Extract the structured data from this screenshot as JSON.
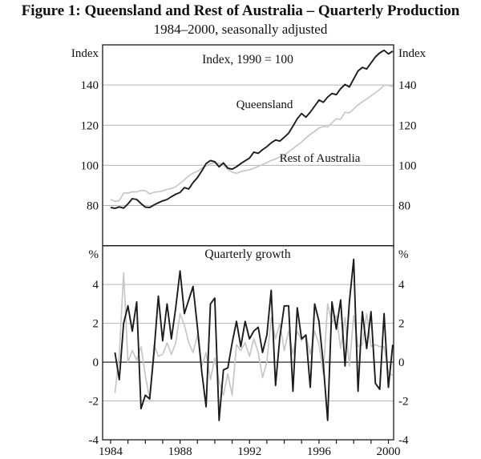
{
  "figure": {
    "title": "Figure 1: Queensland and Rest of Australia – Quarterly Production",
    "subtitle": "1984–2000, seasonally adjusted"
  },
  "colors": {
    "queensland": "#1c1c1c",
    "rest_of_australia": "#c7c7c7",
    "grid": "#b5b5b5",
    "zero_line": "#4d4d4d",
    "frame": "#1a1a1a"
  },
  "x_axis": {
    "xlim": [
      1983.54,
      2000.3
    ],
    "tick_years": [
      1984,
      1985,
      1986,
      1987,
      1988,
      1989,
      1990,
      1991,
      1992,
      1993,
      1994,
      1995,
      1996,
      1997,
      1998,
      1999,
      2000
    ],
    "label_years": [
      "1984",
      "1988",
      "1992",
      "1996",
      "2000"
    ]
  },
  "chart_data": [
    {
      "type": "line",
      "panel": "index",
      "title": "Index, 1990 = 100",
      "unit_label": "Index",
      "ylim": [
        60,
        160
      ],
      "yticks": [
        80,
        100,
        120,
        140
      ],
      "x_start": 1984.0,
      "x_step": 0.25,
      "series": [
        {
          "name": "Queensland",
          "color_key": "queensland",
          "width": 1.9,
          "values": [
            79.0,
            78.6,
            79.3,
            78.7,
            80.8,
            83.4,
            83.0,
            81.0,
            79.2,
            79.0,
            80.3,
            81.4,
            82.3,
            83.0,
            84.4,
            85.6,
            86.5,
            88.9,
            88.2,
            91.4,
            93.9,
            97.2,
            100.9,
            102.4,
            101.8,
            99.3,
            101.2,
            98.6,
            98.1,
            99.3,
            100.9,
            102.3,
            103.6,
            106.6,
            106.0,
            107.8,
            109.3,
            111.2,
            112.6,
            112.1,
            114.0,
            116.0,
            119.5,
            123.2,
            125.8,
            124.0,
            126.5,
            129.5,
            132.5,
            131.4,
            134.0,
            135.8,
            135.2,
            138.2,
            140.3,
            139.0,
            143.0,
            147.0,
            148.8,
            148.0,
            151.0,
            154.0,
            156.0,
            157.3,
            155.5,
            156.9
          ]
        },
        {
          "name": "Rest of Australia",
          "color_key": "rest_of_australia",
          "width": 1.7,
          "values": [
            83.0,
            82.0,
            82.4,
            86.2,
            86.2,
            86.8,
            86.8,
            87.5,
            87.4,
            85.8,
            86.6,
            86.9,
            87.2,
            88.1,
            88.5,
            89.4,
            91.0,
            92.8,
            94.8,
            96.1,
            97.0,
            98.6,
            99.7,
            100.9,
            101.3,
            101.0,
            100.0,
            98.0,
            96.6,
            96.0,
            96.9,
            97.4,
            97.8,
            98.6,
            99.5,
            100.4,
            101.4,
            102.4,
            103.2,
            104.1,
            105.0,
            106.7,
            108.3,
            110.0,
            111.6,
            113.6,
            115.4,
            116.9,
            118.6,
            119.4,
            119.1,
            121.2,
            123.2,
            123.0,
            126.4,
            126.1,
            128.1,
            130.1,
            131.6,
            133.1,
            134.6,
            136.2,
            137.8,
            139.8,
            140.0,
            139.1
          ]
        }
      ]
    },
    {
      "type": "line",
      "panel": "growth",
      "title": "Quarterly growth",
      "unit_label": "%",
      "ylim": [
        -4,
        6
      ],
      "yticks": [
        -4,
        -2,
        0,
        2,
        4
      ],
      "zero_line": 0,
      "x_start": 1984.25,
      "x_step": 0.25,
      "series": [
        {
          "name": "Queensland",
          "color_key": "queensland",
          "width": 1.9,
          "values": [
            0.5,
            -0.9,
            2.0,
            2.9,
            1.6,
            3.1,
            -2.4,
            -1.7,
            -1.9,
            0.5,
            3.4,
            1.1,
            3.0,
            1.2,
            2.8,
            4.7,
            2.5,
            3.2,
            3.9,
            1.8,
            -0.5,
            -2.3,
            3.0,
            3.3,
            -3.0,
            -0.4,
            -0.3,
            1.0,
            2.1,
            0.8,
            2.1,
            1.2,
            1.6,
            1.8,
            0.5,
            1.4,
            3.7,
            -1.2,
            1.3,
            2.9,
            2.9,
            -1.5,
            2.8,
            1.2,
            1.4,
            -1.3,
            3.0,
            2.1,
            -0.1,
            -3.0,
            3.1,
            1.7,
            3.2,
            -0.2,
            3.1,
            5.3,
            -1.5,
            2.6,
            0.7,
            2.6,
            -1.1,
            -1.4,
            2.5,
            -1.3,
            0.9
          ]
        },
        {
          "name": "Rest of Australia",
          "color_key": "rest_of_australia",
          "width": 1.7,
          "values": [
            -1.6,
            0.4,
            4.6,
            0.0,
            0.6,
            0.1,
            0.8,
            -0.7,
            -1.9,
            0.9,
            0.3,
            0.4,
            1.0,
            0.4,
            1.0,
            2.5,
            1.9,
            1.0,
            0.5,
            1.4,
            -0.2,
            0.5,
            -0.9,
            0.2,
            -1.0,
            -1.7,
            -0.6,
            -1.7,
            0.9,
            0.6,
            1.0,
            0.3,
            1.2,
            0.5,
            -0.8,
            0.0,
            2.3,
            1.2,
            2.0,
            0.6,
            1.6,
            0.4,
            1.6,
            1.1,
            1.4,
            0.4,
            1.6,
            0.9,
            -0.6,
            3.0,
            2.0,
            2.4,
            0.7,
            2.3,
            -0.2,
            2.4,
            0.8,
            0.9,
            2.5,
            0.8,
            0.9,
            0.8,
            0.8,
            -0.5,
            -0.7
          ]
        }
      ]
    }
  ]
}
